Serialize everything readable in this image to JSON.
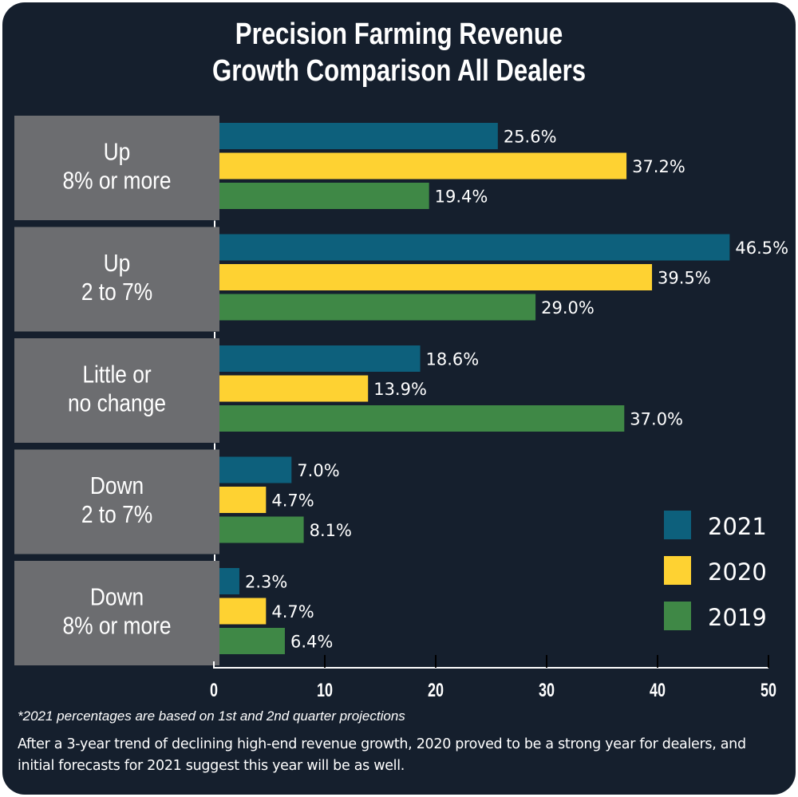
{
  "colors": {
    "background": "#151f2d",
    "panel": "#6c6d70",
    "series_2021": "#0d607c",
    "series_2020": "#fed232",
    "series_2019": "#3f8846",
    "text": "#ffffff"
  },
  "chart_data": {
    "type": "bar",
    "orientation": "horizontal",
    "title": "Precision Farming Revenue Growth Comparison All Dealers",
    "title_lines": [
      "Precision Farming Revenue",
      "Growth Comparison All Dealers"
    ],
    "categories": [
      "Up 8% or more",
      "Up 2 to 7%",
      "Little or no change",
      "Down 2 to 7%",
      "Down 8% or more"
    ],
    "category_lines": [
      [
        "Up",
        "8% or more"
      ],
      [
        "Up",
        "2 to 7%"
      ],
      [
        "Little or",
        "no change"
      ],
      [
        "Down",
        "2 to 7%"
      ],
      [
        "Down",
        "8% or more"
      ]
    ],
    "series": [
      {
        "name": "2021",
        "color": "#0d607c",
        "values": [
          25.6,
          46.5,
          18.6,
          7.0,
          2.3
        ],
        "labels": [
          "25.6%",
          "46.5%",
          "18.6%",
          "7.0%",
          "2.3%"
        ]
      },
      {
        "name": "2020",
        "color": "#fed232",
        "values": [
          37.2,
          39.5,
          13.9,
          4.7,
          4.7
        ],
        "labels": [
          "37.2%",
          "39.5%",
          "13.9%",
          "4.7%",
          "4.7%"
        ]
      },
      {
        "name": "2019",
        "color": "#3f8846",
        "values": [
          19.4,
          29.0,
          37.0,
          8.1,
          6.4
        ],
        "labels": [
          "19.4%",
          "29.0%",
          "37.0%",
          "8.1%",
          "6.4%"
        ]
      }
    ],
    "xlabel": "",
    "ylabel": "",
    "xlim": [
      0,
      50
    ],
    "xticks": [
      0,
      10,
      20,
      30,
      40,
      50
    ],
    "grid": false,
    "legend": {
      "position": "bottom-right",
      "entries": [
        "2021",
        "2020",
        "2019"
      ]
    }
  },
  "footnote": "*2021 percentages are based on 1st and 2nd quarter projections",
  "summary": "After a 3-year trend of declining high-end revenue growth, 2020 proved to be a strong year for dealers, and initial forecasts for 2021 suggest this year will be as well."
}
